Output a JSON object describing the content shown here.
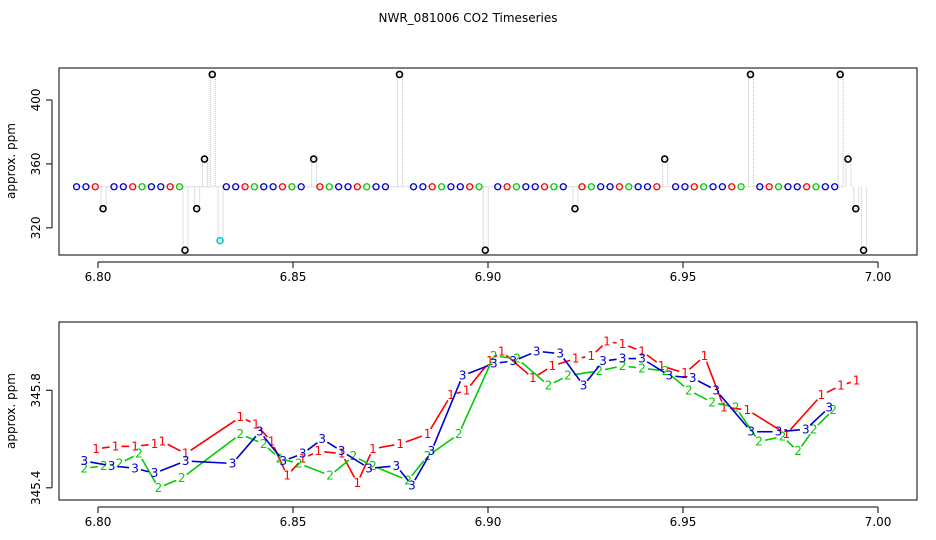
{
  "title": "NWR_081006  CO2 Timeseries",
  "colors": {
    "series1": "#ff0000",
    "series2": "#00cd00",
    "series3": "#0000cd",
    "top_main": "#000000",
    "top_outlier": "#00cdcd",
    "connector": "#bebebe"
  },
  "chart_data": [
    {
      "type": "scatter",
      "title": "",
      "xlabel": "",
      "ylabel": "approx. ppm",
      "xlim": [
        6.79,
        7.01
      ],
      "ylim": [
        303,
        420
      ],
      "xticks": [
        "6.80",
        "6.85",
        "6.90",
        "6.95",
        "7.00"
      ],
      "xtick_values": [
        6.8,
        6.85,
        6.9,
        6.95,
        7.0
      ],
      "yticks": [
        "320",
        "360",
        "400"
      ],
      "ytick_values": [
        320,
        360,
        400
      ],
      "grid": false,
      "baseline_level": 345.7,
      "baseline_x_start": 6.7945,
      "baseline_x_end": 6.9905,
      "baseline_step": 0.0024,
      "points": [
        {
          "x": 6.8013,
          "y": 332
        },
        {
          "x": 6.8223,
          "y": 306
        },
        {
          "x": 6.8253,
          "y": 332
        },
        {
          "x": 6.8273,
          "y": 363
        },
        {
          "x": 6.8293,
          "y": 416
        },
        {
          "x": 6.8553,
          "y": 363
        },
        {
          "x": 6.8773,
          "y": 416
        },
        {
          "x": 6.8993,
          "y": 306
        },
        {
          "x": 6.9223,
          "y": 332
        },
        {
          "x": 6.9453,
          "y": 363
        },
        {
          "x": 6.9673,
          "y": 416
        },
        {
          "x": 6.9903,
          "y": 416
        },
        {
          "x": 6.9923,
          "y": 363
        },
        {
          "x": 6.9943,
          "y": 332
        },
        {
          "x": 6.9963,
          "y": 306
        }
      ],
      "outliers": [
        {
          "x": 6.8313,
          "y": 312
        }
      ]
    },
    {
      "type": "line",
      "title": "",
      "xlabel": "",
      "ylabel": "approx. ppm",
      "xlim": [
        6.79,
        7.01
      ],
      "ylim": [
        345.35,
        346.08
      ],
      "xticks": [
        "6.80",
        "6.85",
        "6.90",
        "6.95",
        "7.00"
      ],
      "xtick_values": [
        6.8,
        6.85,
        6.9,
        6.95,
        7.0
      ],
      "yticks": [
        "345.4",
        "345.8"
      ],
      "ytick_values": [
        345.4,
        345.8
      ],
      "grid": false,
      "series": [
        {
          "label": "1",
          "points": [
            [
              6.7995,
              345.56
            ],
            [
              6.8045,
              345.57
            ],
            [
              6.8095,
              345.57
            ],
            [
              6.8145,
              345.58
            ],
            [
              6.8165,
              345.59
            ],
            [
              6.8225,
              345.54
            ],
            [
              6.8365,
              345.69
            ],
            [
              6.8405,
              345.66
            ],
            [
              6.8445,
              345.59
            ],
            [
              6.8485,
              345.45
            ],
            [
              6.8525,
              345.52
            ],
            [
              6.8565,
              345.55
            ],
            [
              6.8625,
              345.54
            ],
            [
              6.8665,
              345.42
            ],
            [
              6.8705,
              345.56
            ],
            [
              6.8775,
              345.58
            ],
            [
              6.8845,
              345.62
            ],
            [
              6.8905,
              345.78
            ],
            [
              6.8945,
              345.8
            ],
            [
              6.9005,
              345.92
            ],
            [
              6.9035,
              345.96
            ],
            [
              6.9115,
              345.85
            ],
            [
              6.9165,
              345.9
            ],
            [
              6.9225,
              345.93
            ],
            [
              6.9265,
              345.94
            ],
            [
              6.9305,
              346.0
            ],
            [
              6.9345,
              345.99
            ],
            [
              6.9395,
              345.96
            ],
            [
              6.9445,
              345.9
            ],
            [
              6.9505,
              345.87
            ],
            [
              6.9555,
              345.94
            ],
            [
              6.9605,
              345.73
            ],
            [
              6.9665,
              345.72
            ],
            [
              6.9765,
              345.62
            ],
            [
              6.9855,
              345.78
            ],
            [
              6.9905,
              345.82
            ],
            [
              6.9945,
              345.84
            ]
          ]
        },
        {
          "label": "2",
          "points": [
            [
              6.7965,
              345.48
            ],
            [
              6.8015,
              345.49
            ],
            [
              6.8055,
              345.5
            ],
            [
              6.8105,
              345.54
            ],
            [
              6.8155,
              345.4
            ],
            [
              6.8215,
              345.44
            ],
            [
              6.8365,
              345.62
            ],
            [
              6.8425,
              345.58
            ],
            [
              6.8465,
              345.52
            ],
            [
              6.8515,
              345.5
            ],
            [
              6.8595,
              345.45
            ],
            [
              6.8655,
              345.53
            ],
            [
              6.8705,
              345.49
            ],
            [
              6.8795,
              345.43
            ],
            [
              6.8845,
              345.53
            ],
            [
              6.8925,
              345.62
            ],
            [
              6.9015,
              345.94
            ],
            [
              6.9075,
              345.93
            ],
            [
              6.9155,
              345.82
            ],
            [
              6.9205,
              345.86
            ],
            [
              6.9285,
              345.88
            ],
            [
              6.9345,
              345.9
            ],
            [
              6.9395,
              345.89
            ],
            [
              6.9455,
              345.88
            ],
            [
              6.9515,
              345.8
            ],
            [
              6.9575,
              345.75
            ],
            [
              6.9635,
              345.73
            ],
            [
              6.9695,
              345.59
            ],
            [
              6.9755,
              345.61
            ],
            [
              6.9795,
              345.55
            ],
            [
              6.9835,
              345.64
            ],
            [
              6.9885,
              345.72
            ]
          ]
        },
        {
          "label": "3",
          "points": [
            [
              6.7965,
              345.51
            ],
            [
              6.8035,
              345.49
            ],
            [
              6.8095,
              345.48
            ],
            [
              6.8145,
              345.46
            ],
            [
              6.8225,
              345.51
            ],
            [
              6.8345,
              345.5
            ],
            [
              6.8415,
              345.63
            ],
            [
              6.8475,
              345.51
            ],
            [
              6.8525,
              345.54
            ],
            [
              6.8575,
              345.6
            ],
            [
              6.8625,
              345.55
            ],
            [
              6.8695,
              345.48
            ],
            [
              6.8765,
              345.49
            ],
            [
              6.8805,
              345.41
            ],
            [
              6.8855,
              345.55
            ],
            [
              6.8935,
              345.86
            ],
            [
              6.9015,
              345.91
            ],
            [
              6.9065,
              345.92
            ],
            [
              6.9125,
              345.96
            ],
            [
              6.9185,
              345.95
            ],
            [
              6.9245,
              345.82
            ],
            [
              6.9295,
              345.92
            ],
            [
              6.9345,
              345.93
            ],
            [
              6.9395,
              345.93
            ],
            [
              6.9465,
              345.86
            ],
            [
              6.9525,
              345.85
            ],
            [
              6.9585,
              345.8
            ],
            [
              6.9675,
              345.63
            ],
            [
              6.9745,
              345.63
            ],
            [
              6.9815,
              345.64
            ],
            [
              6.9875,
              345.73
            ]
          ]
        }
      ]
    }
  ]
}
